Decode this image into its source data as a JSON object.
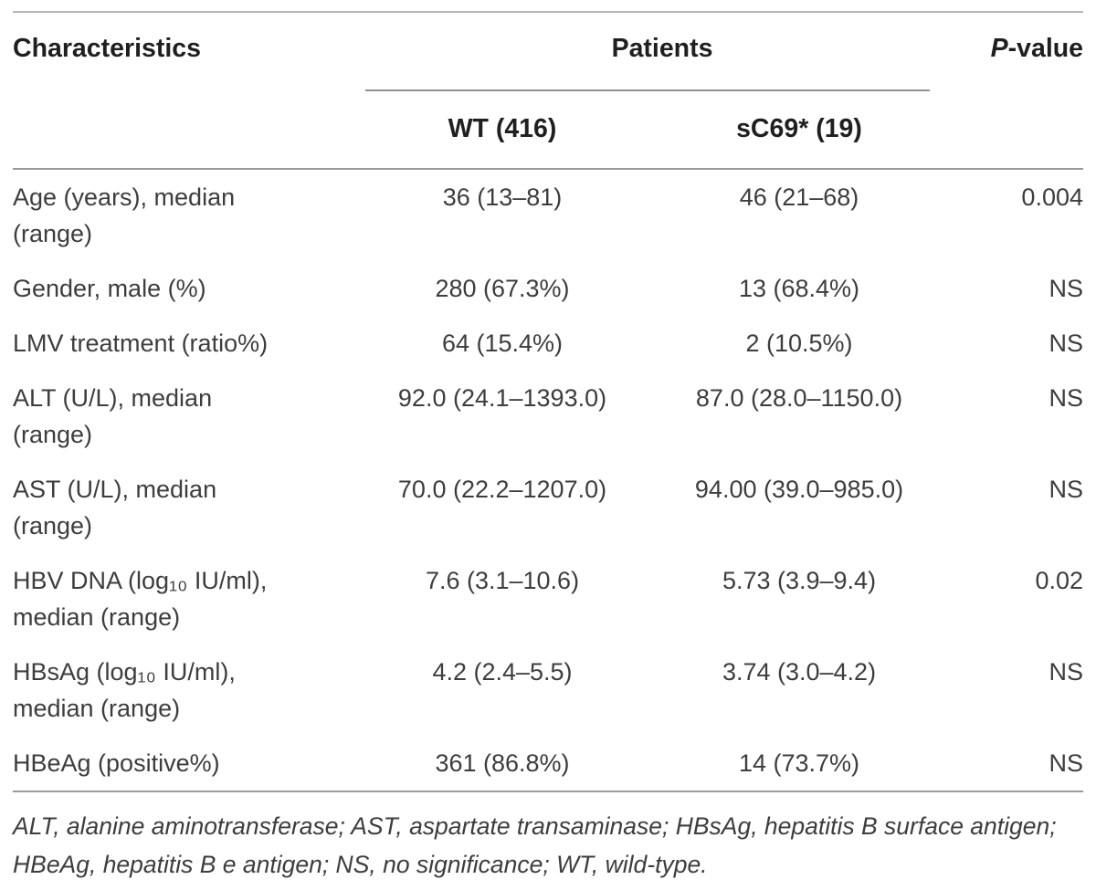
{
  "table": {
    "header": {
      "characteristics": "Characteristics",
      "patients_group": "Patients",
      "p_value_prefix": "P",
      "p_value_suffix": "-value",
      "wt_column": "WT (416)",
      "sc69_column": "sC69* (19)"
    },
    "rows": [
      {
        "label": "Age (years), median\n(range)",
        "wt": "36 (13–81)",
        "sc69": "46 (21–68)",
        "p": "0.004"
      },
      {
        "label": "Gender, male (%)",
        "wt": "280 (67.3%)",
        "sc69": "13 (68.4%)",
        "p": "NS"
      },
      {
        "label": "LMV treatment (ratio%)",
        "wt": "64 (15.4%)",
        "sc69": "2 (10.5%)",
        "p": "NS"
      },
      {
        "label": "ALT (U/L), median\n(range)",
        "wt": "92.0 (24.1–1393.0)",
        "sc69": "87.0 (28.0–1150.0)",
        "p": "NS"
      },
      {
        "label": "AST (U/L), median\n(range)",
        "wt": "70.0 (22.2–1207.0)",
        "sc69": "94.00 (39.0–985.0)",
        "p": "NS"
      },
      {
        "label": "HBV DNA (log₁₀ IU/ml),\nmedian (range)",
        "wt": "7.6 (3.1–10.6)",
        "sc69": "5.73 (3.9–9.4)",
        "p": "0.02"
      },
      {
        "label": "HBsAg (log₁₀ IU/ml),\nmedian (range)",
        "wt": "4.2 (2.4–5.5)",
        "sc69": "3.74 (3.0–4.2)",
        "p": "NS"
      },
      {
        "label": "HBeAg (positive%)",
        "wt": "361 (86.8%)",
        "sc69": "14 (73.7%)",
        "p": "NS"
      }
    ],
    "footnote": "ALT, alanine aminotransferase; AST, aspartate transaminase; HBsAg, hepatitis B surface antigen; HBeAg, hepatitis B e antigen; NS, no significance; WT, wild-type.",
    "colors": {
      "header_text": "#1f1f1f",
      "body_text": "#3d3d3d",
      "rule_light": "#b5b5b5",
      "rule_dark": "#9a9a9a"
    }
  }
}
